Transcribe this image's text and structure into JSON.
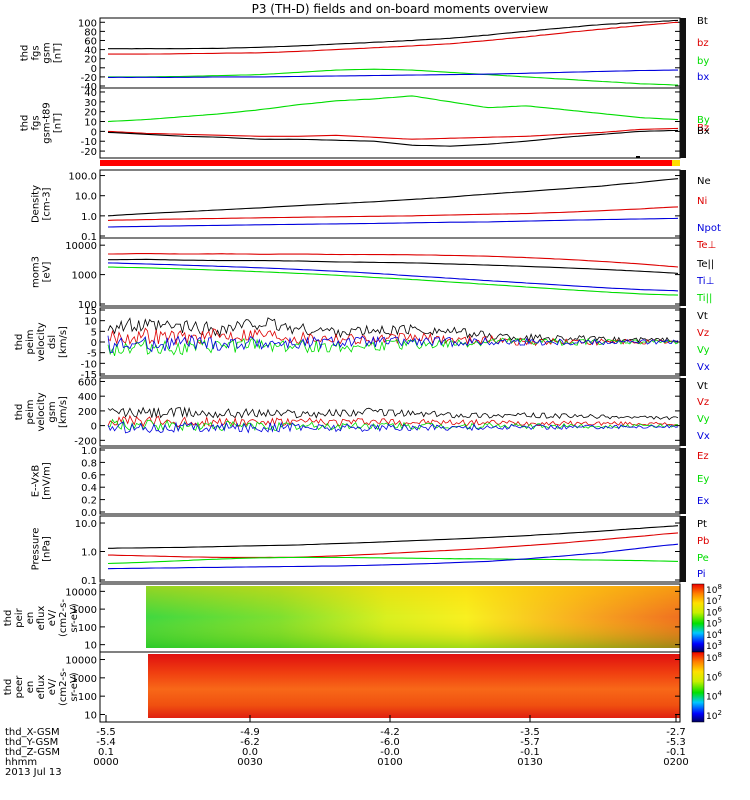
{
  "title": "P3 (TH-D) fields and on-board moments overview",
  "date": "2013 Jul 13",
  "x_axis": {
    "rows": [
      {
        "label": "thd_X-GSM",
        "values": [
          "-5.5",
          "-4.9",
          "-4.2",
          "-3.5",
          "-2.7"
        ]
      },
      {
        "label": "thd_Y-GSM",
        "values": [
          "-5.4",
          "-6.2",
          "-6.0",
          "-5.7",
          "-5.3"
        ]
      },
      {
        "label": "thd_Z-GSM",
        "values": [
          "0.1",
          "0.0",
          "-0.0",
          "-0.1",
          "-0.1"
        ]
      },
      {
        "label": "hhmm",
        "values": [
          "0000",
          "0030",
          "0100",
          "0130",
          "0200"
        ]
      }
    ]
  },
  "colors": {
    "black": "#000000",
    "red": "#dd0000",
    "green": "#00dd00",
    "blue": "#0000dd"
  },
  "colorbar_labels": {
    "p9": [
      "10^8",
      "10^7",
      "10^6",
      "10^5",
      "10^4",
      "10^3"
    ],
    "p10": [
      "10^8",
      "10^6",
      "10^4",
      "10^2"
    ]
  },
  "chart_data": [
    {
      "type": "line",
      "ylabel": [
        "thd",
        "fgs",
        "gsm",
        "[nT]"
      ],
      "yticks": [
        "100",
        "80",
        "60",
        "40",
        "20",
        "0",
        "-20",
        "-40"
      ],
      "series": [
        {
          "name": "Bt",
          "color": "black",
          "y": [
            42,
            42,
            42,
            43,
            45,
            48,
            52,
            56,
            60,
            65,
            72,
            80,
            88,
            95,
            100,
            104
          ]
        },
        {
          "name": "bz",
          "color": "red",
          "y": [
            30,
            30,
            31,
            32,
            33,
            36,
            40,
            44,
            48,
            53,
            60,
            68,
            77,
            85,
            93,
            100
          ]
        },
        {
          "name": "by",
          "color": "green",
          "y": [
            -20,
            -20,
            -19,
            -17,
            -15,
            -10,
            -5,
            -3,
            -5,
            -10,
            -15,
            -20,
            -25,
            -30,
            -35,
            -38
          ]
        },
        {
          "name": "bx",
          "color": "blue",
          "y": [
            -21,
            -21,
            -21,
            -20,
            -20,
            -19,
            -18,
            -17,
            -16,
            -15,
            -14,
            -12,
            -10,
            -8,
            -6,
            -5
          ]
        }
      ]
    },
    {
      "type": "line",
      "ylabel": [
        "thd",
        "fgs",
        "gsm-t89",
        "[nT]"
      ],
      "yticks": [
        "40",
        "30",
        "20",
        "10",
        "0",
        "-10",
        "-20"
      ],
      "series": [
        {
          "name": "By",
          "color": "green",
          "y": [
            10,
            12,
            15,
            18,
            22,
            27,
            31,
            33,
            36,
            30,
            24,
            26,
            22,
            18,
            14,
            12
          ]
        },
        {
          "name": "Bz",
          "color": "red",
          "y": [
            0,
            -2,
            -3,
            -4,
            -5,
            -5,
            -4,
            -6,
            -8,
            -7,
            -6,
            -5,
            -3,
            -1,
            2,
            3
          ]
        },
        {
          "name": "Bx",
          "color": "black",
          "y": [
            -1,
            -3,
            -5,
            -6,
            -8,
            -8,
            -9,
            -10,
            -14,
            -15,
            -13,
            -10,
            -6,
            -3,
            0,
            1
          ]
        }
      ]
    },
    {
      "type": "line",
      "ylabel": [
        "Density",
        "[cm-3]"
      ],
      "scale": "log",
      "yticks": [
        "100.0",
        "10.0",
        "1.0",
        "0.1"
      ],
      "series": [
        {
          "name": "Ne",
          "color": "black",
          "y": [
            1.0,
            1.3,
            1.6,
            2.0,
            2.5,
            3.2,
            4.0,
            5.0,
            6.5,
            8.5,
            12,
            16,
            22,
            30,
            45,
            70
          ]
        },
        {
          "name": "Ni",
          "color": "red",
          "y": [
            0.6,
            0.65,
            0.7,
            0.75,
            0.8,
            0.85,
            0.9,
            0.95,
            1.0,
            1.1,
            1.2,
            1.3,
            1.5,
            1.8,
            2.2,
            2.8
          ]
        },
        {
          "name": "Npot",
          "color": "blue",
          "y": [
            0.28,
            0.3,
            0.32,
            0.34,
            0.36,
            0.38,
            0.4,
            0.42,
            0.45,
            0.48,
            0.5,
            0.55,
            0.6,
            0.65,
            0.7,
            0.75
          ]
        }
      ]
    },
    {
      "type": "line",
      "ylabel": [
        "mom3",
        "[eV]"
      ],
      "scale": "log",
      "yticks": [
        "10000",
        "1000",
        "100"
      ],
      "series": [
        {
          "name": "Te⊥",
          "color": "red",
          "y": [
            5000,
            5200,
            5000,
            5100,
            4900,
            5000,
            4800,
            4800,
            4700,
            4500,
            4200,
            3800,
            3300,
            2800,
            2300,
            1800
          ]
        },
        {
          "name": "Te||",
          "color": "black",
          "y": [
            3200,
            3300,
            3100,
            3000,
            3000,
            2900,
            2700,
            2600,
            2500,
            2300,
            2100,
            1900,
            1700,
            1500,
            1300,
            1100
          ]
        },
        {
          "name": "Ti⊥",
          "color": "blue",
          "y": [
            2500,
            2300,
            2100,
            1900,
            1700,
            1500,
            1300,
            1100,
            900,
            750,
            620,
            520,
            430,
            360,
            310,
            280
          ]
        },
        {
          "name": "Ti||",
          "color": "green",
          "y": [
            1800,
            1700,
            1550,
            1400,
            1250,
            1100,
            950,
            800,
            680,
            560,
            460,
            380,
            310,
            260,
            220,
            200
          ]
        }
      ]
    },
    {
      "type": "line",
      "ylabel": [
        "thd",
        "peim",
        "velocity",
        "dsl",
        "[km/s]"
      ],
      "yticks": [
        "15",
        "10",
        "5",
        "0",
        "-5",
        "-10",
        "-15"
      ],
      "series": [
        {
          "name": "Vt",
          "color": "black",
          "y": [
            8,
            7,
            7,
            6,
            9,
            6,
            5,
            5,
            6,
            5,
            3,
            2,
            2,
            1,
            1,
            1
          ]
        },
        {
          "name": "Vz",
          "color": "red",
          "y": [
            2,
            3,
            2,
            3,
            4,
            2,
            2,
            1,
            2,
            1,
            1,
            0,
            0,
            0,
            0,
            0
          ]
        },
        {
          "name": "Vy",
          "color": "green",
          "y": [
            -3,
            -2,
            -3,
            -2,
            -1,
            -2,
            -2,
            -2,
            -1,
            -1,
            0,
            0,
            0,
            0,
            0,
            0
          ]
        },
        {
          "name": "Vx",
          "color": "blue",
          "y": [
            -1,
            -1,
            0,
            -1,
            0,
            -1,
            0,
            0,
            0,
            0,
            0,
            0,
            0,
            0,
            0,
            0
          ]
        }
      ]
    },
    {
      "type": "line",
      "ylabel": [
        "thd",
        "peim",
        "velocity",
        "gsm",
        "[km/s]"
      ],
      "yticks": [
        "600",
        "400",
        "200",
        "0",
        "-200"
      ],
      "series": [
        {
          "name": "Vt",
          "color": "black",
          "y": [
            180,
            170,
            175,
            165,
            170,
            160,
            170,
            190,
            160,
            150,
            140,
            140,
            130,
            120,
            110,
            100
          ]
        },
        {
          "name": "Vz",
          "color": "red",
          "y": [
            60,
            55,
            50,
            55,
            50,
            45,
            50,
            60,
            45,
            40,
            40,
            35,
            30,
            30,
            25,
            20
          ]
        },
        {
          "name": "Vy",
          "color": "green",
          "y": [
            10,
            0,
            -10,
            0,
            -5,
            -10,
            -5,
            0,
            -10,
            -10,
            -5,
            -10,
            -5,
            -10,
            -5,
            0
          ]
        },
        {
          "name": "Vx",
          "color": "blue",
          "y": [
            -20,
            -25,
            -20,
            -30,
            -25,
            -20,
            -30,
            -25,
            -30,
            -20,
            -25,
            -20,
            -20,
            -15,
            -15,
            -10
          ]
        }
      ]
    },
    {
      "type": "line",
      "ylabel": [
        "E--VxB",
        "[mV/m]"
      ],
      "yticks": [
        "1.0",
        "0.8",
        "0.6",
        "0.4",
        "0.2",
        "0.0"
      ],
      "series": [
        {
          "name": "Ez",
          "color": "red",
          "y": []
        },
        {
          "name": "Ey",
          "color": "green",
          "y": []
        },
        {
          "name": "Ex",
          "color": "blue",
          "y": []
        }
      ]
    },
    {
      "type": "line",
      "ylabel": [
        "Pressure",
        "[nPa]"
      ],
      "scale": "log",
      "yticks": [
        "10.0",
        "1.0",
        "0.1"
      ],
      "series": [
        {
          "name": "Pt",
          "color": "black",
          "y": [
            1.3,
            1.35,
            1.4,
            1.5,
            1.6,
            1.7,
            1.9,
            2.1,
            2.4,
            2.7,
            3.1,
            3.6,
            4.3,
            5.2,
            6.5,
            8.0
          ]
        },
        {
          "name": "Pb",
          "color": "red",
          "y": [
            0.75,
            0.7,
            0.65,
            0.62,
            0.62,
            0.63,
            0.7,
            0.8,
            0.95,
            1.1,
            1.3,
            1.6,
            2.0,
            2.6,
            3.4,
            4.5
          ]
        },
        {
          "name": "Pe",
          "color": "green",
          "y": [
            0.38,
            0.42,
            0.48,
            0.55,
            0.6,
            0.62,
            0.62,
            0.6,
            0.58,
            0.56,
            0.55,
            0.53,
            0.52,
            0.5,
            0.48,
            0.45
          ]
        },
        {
          "name": "Pi",
          "color": "blue",
          "y": [
            0.25,
            0.26,
            0.27,
            0.28,
            0.29,
            0.3,
            0.31,
            0.33,
            0.36,
            0.4,
            0.45,
            0.55,
            0.7,
            0.9,
            1.3,
            1.8
          ]
        }
      ]
    },
    {
      "type": "heatmap",
      "ylabel": [
        "thd",
        "peir",
        "en",
        "eflux",
        "eV/",
        "(cm2-s-",
        "sr-eV)"
      ],
      "scale": "log",
      "yticks": [
        "10000",
        "1000",
        "100",
        "10"
      ]
    },
    {
      "type": "heatmap",
      "ylabel": [
        "thd",
        "peer",
        "en",
        "eflux",
        "eV/",
        "(cm2-s-",
        "sr-eV)"
      ],
      "scale": "log",
      "yticks": [
        "10000",
        "1000",
        "100",
        "10"
      ]
    }
  ]
}
